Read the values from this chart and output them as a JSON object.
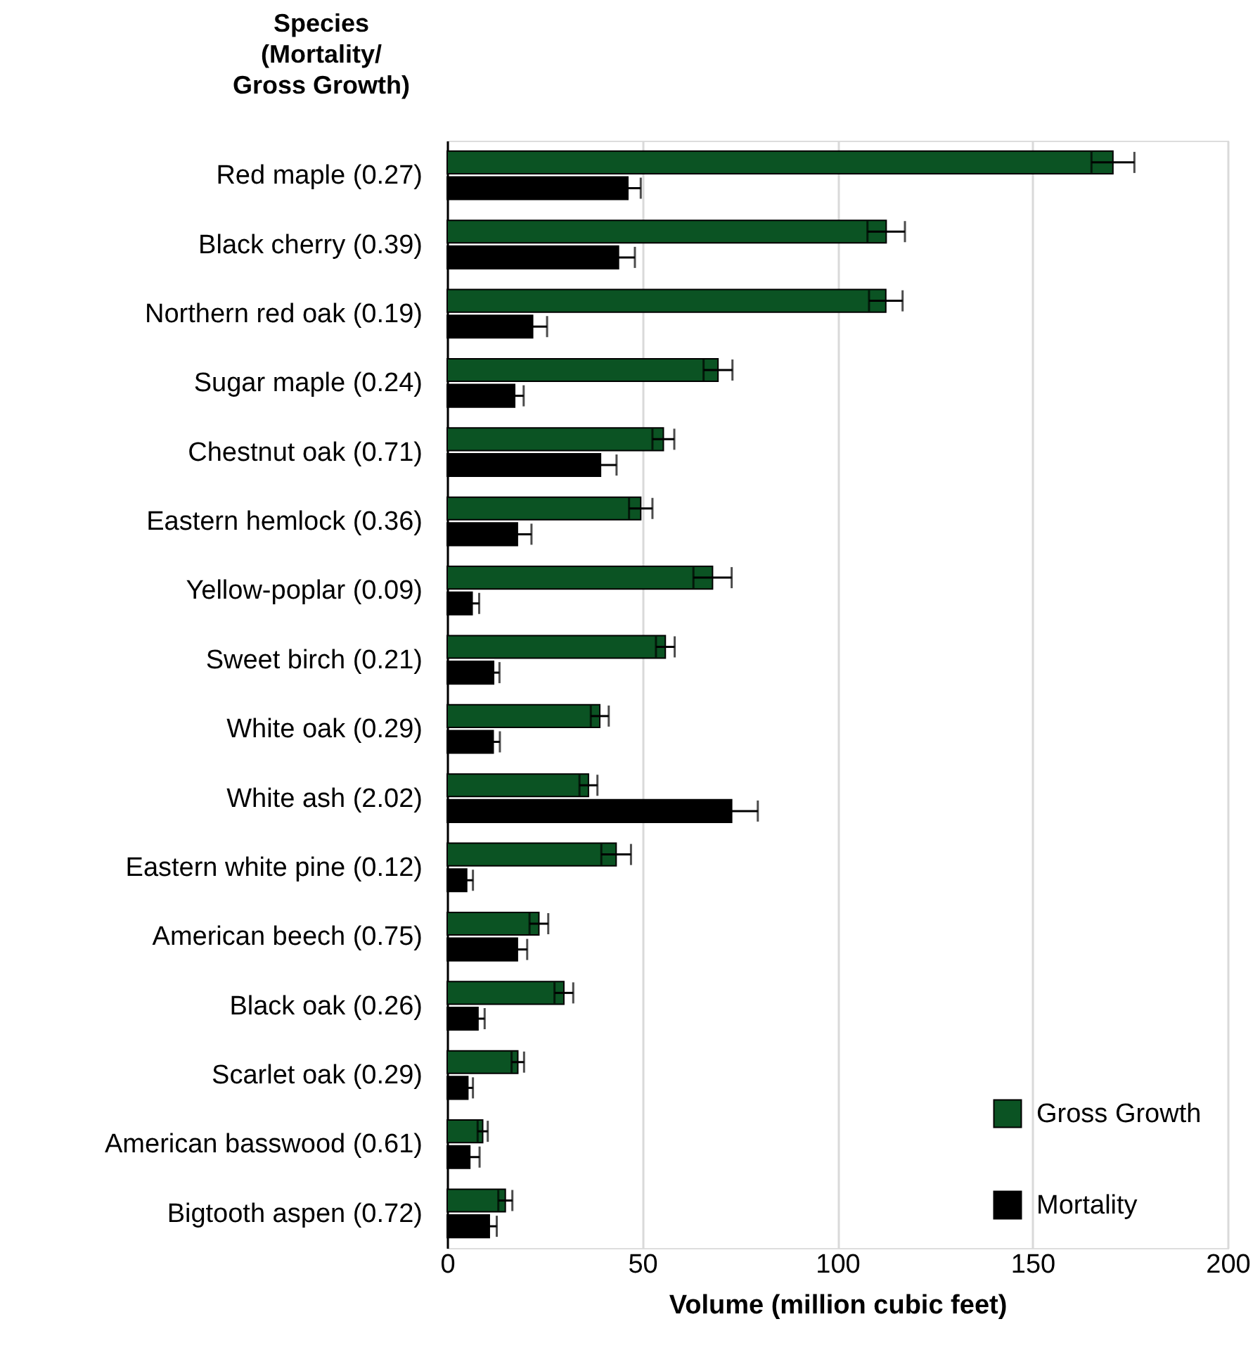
{
  "chart_data": {
    "type": "bar",
    "orientation": "horizontal",
    "ylabel": "Species\n(Mortality/\nGross Growth)",
    "xlabel": "Volume (million cubic feet)",
    "categories": [
      "Red maple (0.27)",
      "Black cherry (0.39)",
      "Northern red oak (0.19)",
      "Sugar maple (0.24)",
      "Chestnut oak (0.71)",
      "Eastern hemlock (0.36)",
      "Yellow-poplar (0.09)",
      "Sweet birch (0.21)",
      "White oak (0.29)",
      "White ash (2.02)",
      "Eastern white pine (0.12)",
      "American beech (0.75)",
      "Black oak (0.26)",
      "Scarlet oak (0.29)",
      "American basswood (0.61)",
      "Bigtooth aspen (0.72)"
    ],
    "series": [
      {
        "name": "Gross Growth",
        "color": "#0b5323",
        "values": [
          170.6,
          112.5,
          112.4,
          69.4,
          55.4,
          49.6,
          68.0,
          55.9,
          39.1,
          36.2,
          43.3,
          23.5,
          29.9,
          18.1,
          9.1,
          14.9
        ],
        "errors": [
          5.5,
          4.8,
          4.3,
          3.7,
          2.8,
          3.0,
          4.9,
          2.4,
          2.3,
          2.3,
          3.8,
          2.4,
          2.4,
          1.6,
          1.3,
          1.8
        ]
      },
      {
        "name": "Mortality",
        "color": "#000000",
        "values": [
          46.3,
          43.9,
          21.9,
          17.3,
          39.3,
          18.0,
          6.4,
          11.9,
          11.8,
          72.9,
          5.0,
          18.0,
          7.9,
          5.3,
          5.8,
          10.8
        ],
        "errors": [
          3.3,
          4.2,
          3.7,
          2.3,
          4.1,
          3.6,
          1.8,
          1.5,
          1.7,
          6.7,
          1.6,
          2.5,
          1.7,
          1.3,
          2.5,
          1.9
        ]
      }
    ],
    "xlim": [
      0,
      200
    ],
    "xticks": [
      0,
      50,
      100,
      150,
      200
    ],
    "grid": "x",
    "legend": "bottom right"
  }
}
